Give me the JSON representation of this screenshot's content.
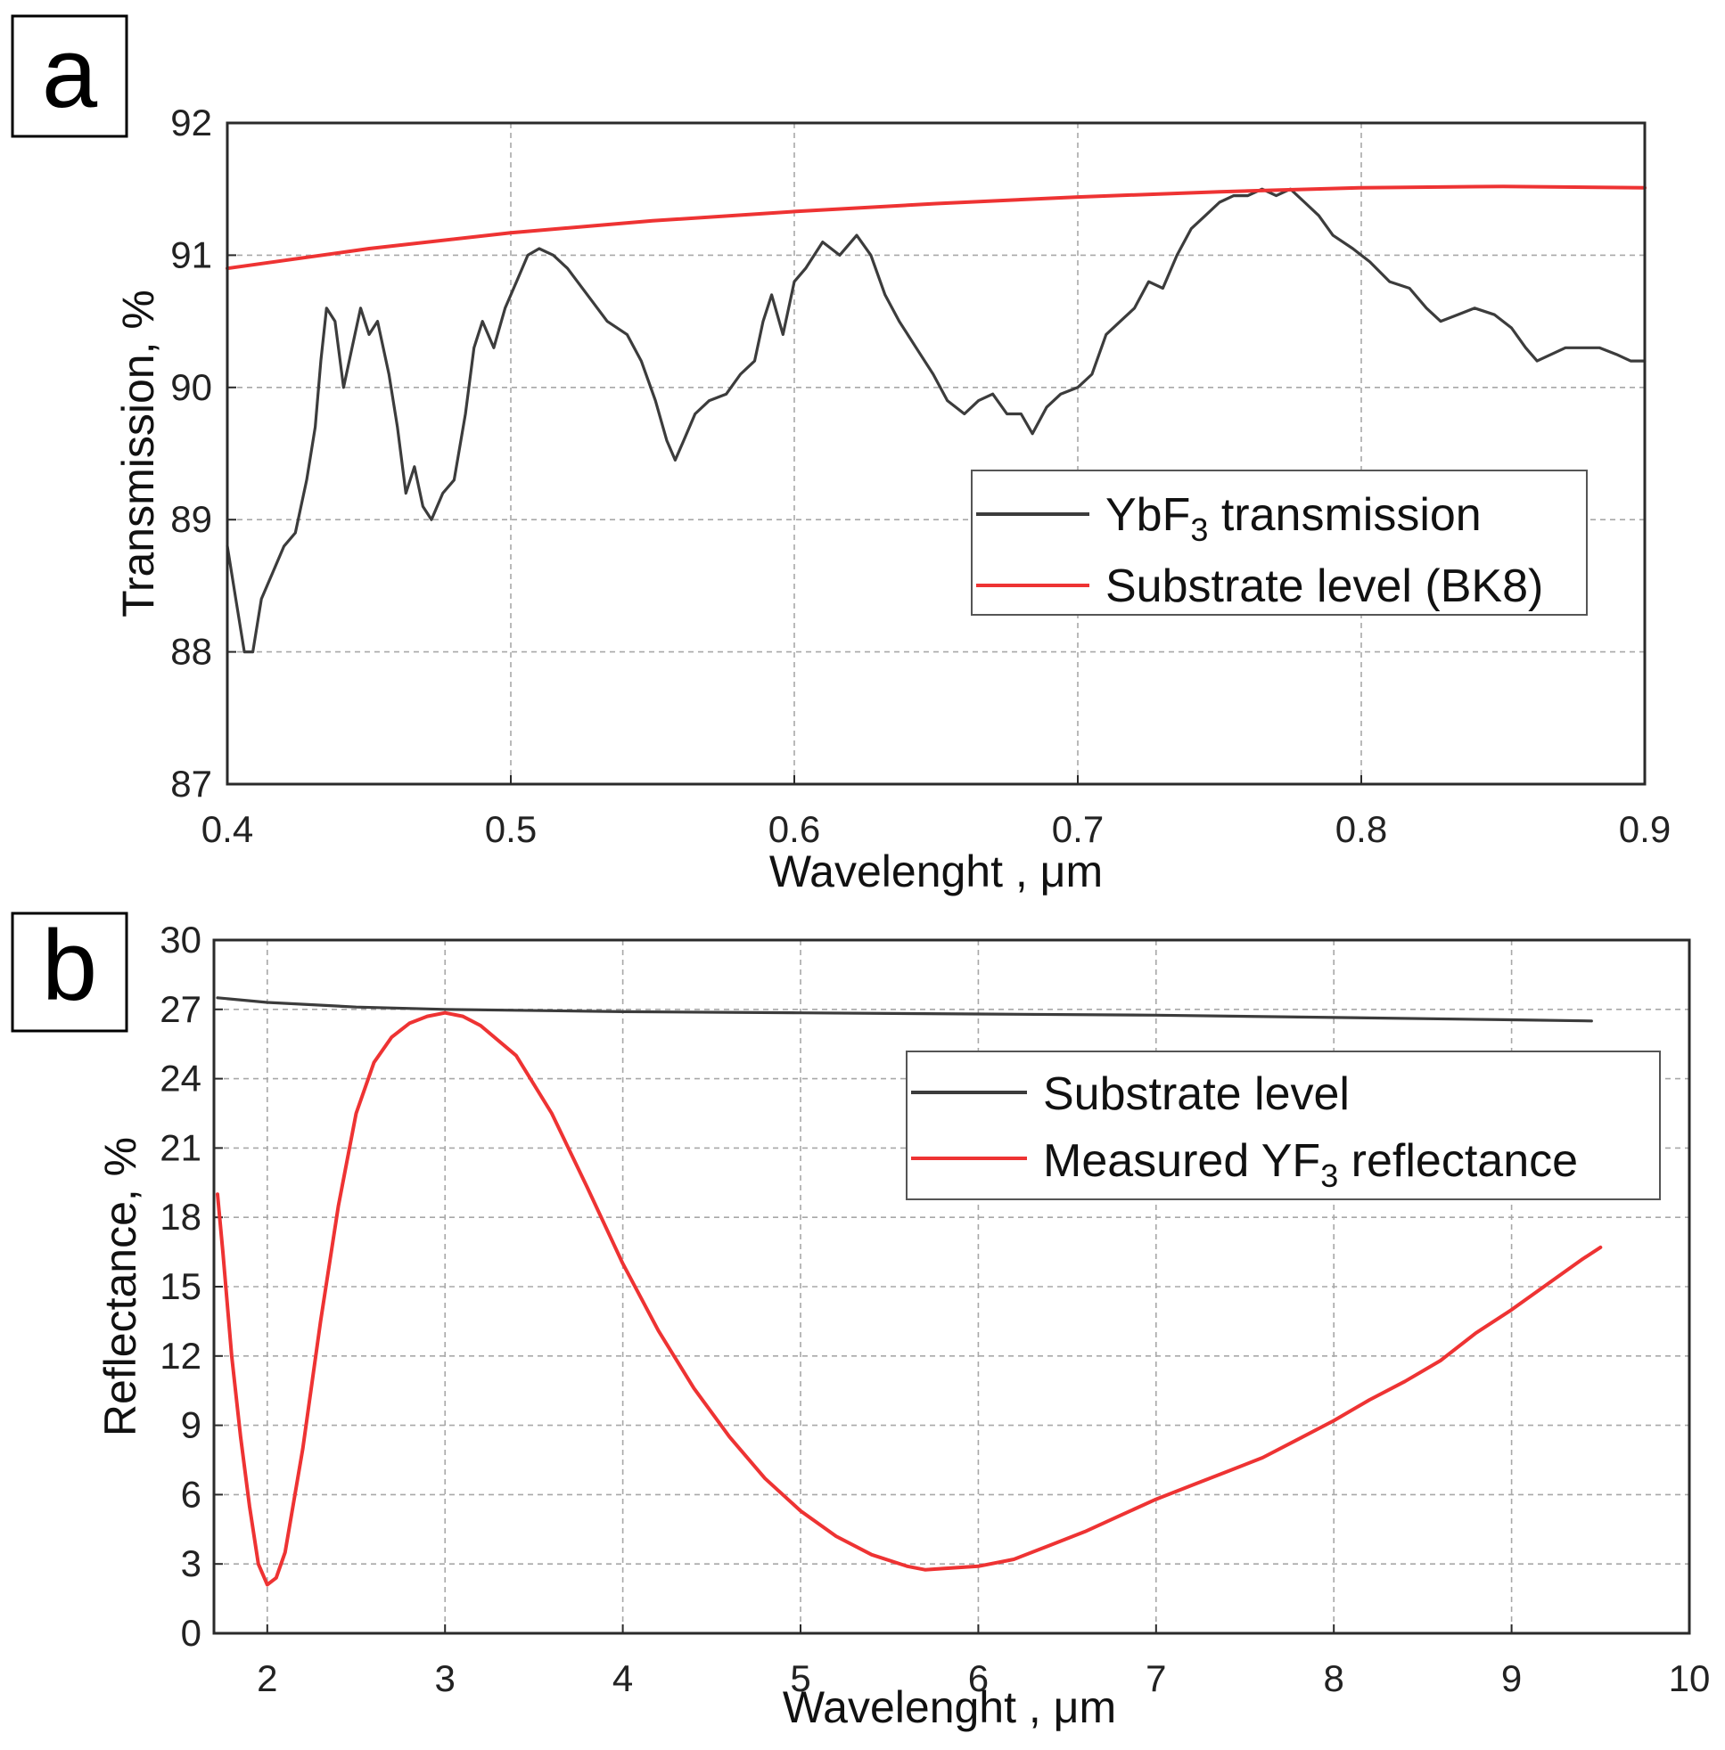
{
  "chart_data": [
    {
      "panel": "a",
      "type": "line",
      "xlabel": "Wavelenght , μm",
      "ylabel": "Transmission, %",
      "xlim": [
        0.4,
        0.9
      ],
      "ylim": [
        87,
        92
      ],
      "xticks": [
        "0.4",
        "0.5",
        "0.6",
        "0.7",
        "0.8",
        "0.9"
      ],
      "yticks": [
        "87",
        "88",
        "89",
        "90",
        "91",
        "92"
      ],
      "grid": true,
      "legend_position": "center-right",
      "series": [
        {
          "name": "YbF3 transmission",
          "label_main": "YbF",
          "label_sub": "3",
          "label_rest": " transmission",
          "color": "#3c3c3c",
          "points": [
            [
              0.4,
              88.8
            ],
            [
              0.403,
              88.4
            ],
            [
              0.406,
              88.0
            ],
            [
              0.409,
              88.0
            ],
            [
              0.412,
              88.4
            ],
            [
              0.416,
              88.6
            ],
            [
              0.42,
              88.8
            ],
            [
              0.424,
              88.9
            ],
            [
              0.428,
              89.3
            ],
            [
              0.431,
              89.7
            ],
            [
              0.433,
              90.2
            ],
            [
              0.435,
              90.6
            ],
            [
              0.438,
              90.5
            ],
            [
              0.441,
              90.0
            ],
            [
              0.444,
              90.3
            ],
            [
              0.447,
              90.6
            ],
            [
              0.45,
              90.4
            ],
            [
              0.453,
              90.5
            ],
            [
              0.457,
              90.1
            ],
            [
              0.46,
              89.7
            ],
            [
              0.463,
              89.2
            ],
            [
              0.466,
              89.4
            ],
            [
              0.469,
              89.1
            ],
            [
              0.472,
              89.0
            ],
            [
              0.476,
              89.2
            ],
            [
              0.48,
              89.3
            ],
            [
              0.484,
              89.8
            ],
            [
              0.487,
              90.3
            ],
            [
              0.49,
              90.5
            ],
            [
              0.494,
              90.3
            ],
            [
              0.498,
              90.6
            ],
            [
              0.502,
              90.8
            ],
            [
              0.506,
              91.0
            ],
            [
              0.51,
              91.05
            ],
            [
              0.515,
              91.0
            ],
            [
              0.52,
              90.9
            ],
            [
              0.527,
              90.7
            ],
            [
              0.534,
              90.5
            ],
            [
              0.541,
              90.4
            ],
            [
              0.546,
              90.2
            ],
            [
              0.551,
              89.9
            ],
            [
              0.555,
              89.6
            ],
            [
              0.558,
              89.45
            ],
            [
              0.561,
              89.6
            ],
            [
              0.565,
              89.8
            ],
            [
              0.57,
              89.9
            ],
            [
              0.576,
              89.95
            ],
            [
              0.581,
              90.1
            ],
            [
              0.586,
              90.2
            ],
            [
              0.589,
              90.5
            ],
            [
              0.592,
              90.7
            ],
            [
              0.596,
              90.4
            ],
            [
              0.6,
              90.8
            ],
            [
              0.604,
              90.9
            ],
            [
              0.61,
              91.1
            ],
            [
              0.616,
              91.0
            ],
            [
              0.622,
              91.15
            ],
            [
              0.627,
              91.0
            ],
            [
              0.632,
              90.7
            ],
            [
              0.637,
              90.5
            ],
            [
              0.643,
              90.3
            ],
            [
              0.649,
              90.1
            ],
            [
              0.654,
              89.9
            ],
            [
              0.66,
              89.8
            ],
            [
              0.665,
              89.9
            ],
            [
              0.67,
              89.95
            ],
            [
              0.675,
              89.8
            ],
            [
              0.68,
              89.8
            ],
            [
              0.684,
              89.65
            ],
            [
              0.689,
              89.85
            ],
            [
              0.694,
              89.95
            ],
            [
              0.7,
              90.0
            ],
            [
              0.705,
              90.1
            ],
            [
              0.71,
              90.4
            ],
            [
              0.715,
              90.5
            ],
            [
              0.72,
              90.6
            ],
            [
              0.725,
              90.8
            ],
            [
              0.73,
              90.75
            ],
            [
              0.735,
              91.0
            ],
            [
              0.74,
              91.2
            ],
            [
              0.745,
              91.3
            ],
            [
              0.75,
              91.4
            ],
            [
              0.755,
              91.45
            ],
            [
              0.76,
              91.45
            ],
            [
              0.765,
              91.5
            ],
            [
              0.77,
              91.45
            ],
            [
              0.775,
              91.5
            ],
            [
              0.78,
              91.4
            ],
            [
              0.785,
              91.3
            ],
            [
              0.79,
              91.15
            ],
            [
              0.797,
              91.05
            ],
            [
              0.803,
              90.95
            ],
            [
              0.81,
              90.8
            ],
            [
              0.817,
              90.75
            ],
            [
              0.823,
              90.6
            ],
            [
              0.828,
              90.5
            ],
            [
              0.834,
              90.55
            ],
            [
              0.84,
              90.6
            ],
            [
              0.847,
              90.55
            ],
            [
              0.853,
              90.45
            ],
            [
              0.858,
              90.3
            ],
            [
              0.862,
              90.2
            ],
            [
              0.867,
              90.25
            ],
            [
              0.872,
              90.3
            ],
            [
              0.878,
              90.3
            ],
            [
              0.884,
              90.3
            ],
            [
              0.89,
              90.25
            ],
            [
              0.895,
              90.2
            ],
            [
              0.9,
              90.2
            ]
          ]
        },
        {
          "name": "Substrate level (BK8)",
          "label_main": "Substrate level (BK8)",
          "label_sub": "",
          "label_rest": "",
          "color": "#ee3333",
          "points": [
            [
              0.4,
              90.9
            ],
            [
              0.45,
              91.05
            ],
            [
              0.5,
              91.17
            ],
            [
              0.55,
              91.26
            ],
            [
              0.6,
              91.33
            ],
            [
              0.65,
              91.39
            ],
            [
              0.7,
              91.44
            ],
            [
              0.75,
              91.48
            ],
            [
              0.8,
              91.51
            ],
            [
              0.85,
              91.52
            ],
            [
              0.9,
              91.51
            ]
          ]
        }
      ]
    },
    {
      "panel": "b",
      "type": "line",
      "xlabel": "Wavelenght , μm",
      "ylabel": "Reflectance, %",
      "xlim": [
        1.7,
        10
      ],
      "ylim": [
        0,
        30
      ],
      "xticks": [
        "2",
        "3",
        "4",
        "5",
        "6",
        "7",
        "8",
        "9",
        "10"
      ],
      "yticks": [
        "0",
        "3",
        "6",
        "9",
        "12",
        "15",
        "18",
        "21",
        "24",
        "27",
        "30"
      ],
      "grid": true,
      "legend_position": "upper-right",
      "series": [
        {
          "name": "Substrate level",
          "label_main": "Substrate level",
          "label_sub": "",
          "label_rest": "",
          "color": "#3c3c3c",
          "points": [
            [
              1.72,
              27.5
            ],
            [
              2.0,
              27.3
            ],
            [
              2.5,
              27.1
            ],
            [
              3.0,
              27.0
            ],
            [
              4.0,
              26.9
            ],
            [
              5.0,
              26.85
            ],
            [
              6.0,
              26.8
            ],
            [
              7.0,
              26.75
            ],
            [
              8.0,
              26.65
            ],
            [
              9.0,
              26.55
            ],
            [
              9.45,
              26.5
            ]
          ]
        },
        {
          "name": "Measured YF3 reflectance",
          "label_main": "Measured YF",
          "label_sub": "3",
          "label_rest": " reflectance",
          "color": "#ee3333",
          "points": [
            [
              1.72,
              19.0
            ],
            [
              1.75,
              16.5
            ],
            [
              1.8,
              12.0
            ],
            [
              1.85,
              8.5
            ],
            [
              1.9,
              5.5
            ],
            [
              1.95,
              3.0
            ],
            [
              2.0,
              2.1
            ],
            [
              2.05,
              2.4
            ],
            [
              2.1,
              3.5
            ],
            [
              2.2,
              8.0
            ],
            [
              2.3,
              13.5
            ],
            [
              2.4,
              18.5
            ],
            [
              2.5,
              22.5
            ],
            [
              2.6,
              24.7
            ],
            [
              2.7,
              25.8
            ],
            [
              2.8,
              26.4
            ],
            [
              2.9,
              26.7
            ],
            [
              3.0,
              26.85
            ],
            [
              3.1,
              26.7
            ],
            [
              3.2,
              26.3
            ],
            [
              3.4,
              25.0
            ],
            [
              3.6,
              22.5
            ],
            [
              3.8,
              19.3
            ],
            [
              4.0,
              16.0
            ],
            [
              4.2,
              13.1
            ],
            [
              4.4,
              10.6
            ],
            [
              4.6,
              8.5
            ],
            [
              4.8,
              6.7
            ],
            [
              5.0,
              5.3
            ],
            [
              5.2,
              4.2
            ],
            [
              5.4,
              3.4
            ],
            [
              5.6,
              2.9
            ],
            [
              5.7,
              2.75
            ],
            [
              5.8,
              2.8
            ],
            [
              6.0,
              2.9
            ],
            [
              6.2,
              3.2
            ],
            [
              6.4,
              3.8
            ],
            [
              6.6,
              4.4
            ],
            [
              6.8,
              5.1
            ],
            [
              7.0,
              5.8
            ],
            [
              7.2,
              6.4
            ],
            [
              7.4,
              7.0
            ],
            [
              7.6,
              7.6
            ],
            [
              7.8,
              8.4
            ],
            [
              8.0,
              9.2
            ],
            [
              8.2,
              10.1
            ],
            [
              8.4,
              10.9
            ],
            [
              8.6,
              11.8
            ],
            [
              8.8,
              13.0
            ],
            [
              9.0,
              14.0
            ],
            [
              9.2,
              15.1
            ],
            [
              9.4,
              16.2
            ],
            [
              9.5,
              16.7
            ]
          ]
        }
      ]
    }
  ]
}
